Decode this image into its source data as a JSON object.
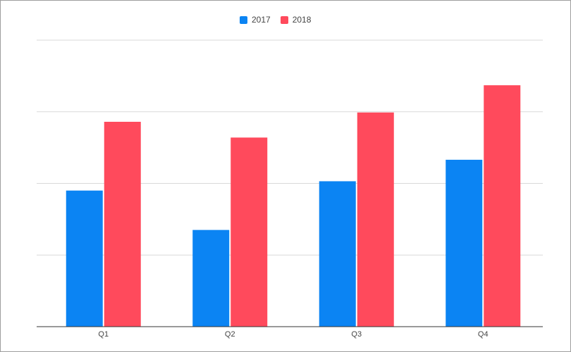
{
  "chart_data": {
    "type": "bar",
    "categories": [
      "Q1",
      "Q2",
      "Q3",
      "Q4"
    ],
    "series": [
      {
        "name": "2017",
        "color": "#0b84f3",
        "values": [
          1.9,
          1.35,
          2.03,
          2.33
        ]
      },
      {
        "name": "2018",
        "color": "#ff4a5c",
        "values": [
          2.86,
          2.64,
          2.99,
          3.37
        ]
      }
    ],
    "ylim": [
      0,
      4
    ],
    "yticks": [
      0,
      1,
      2,
      3,
      4
    ],
    "grid": true,
    "legend_position": "top-center",
    "title": "",
    "xlabel": "",
    "ylabel": ""
  }
}
